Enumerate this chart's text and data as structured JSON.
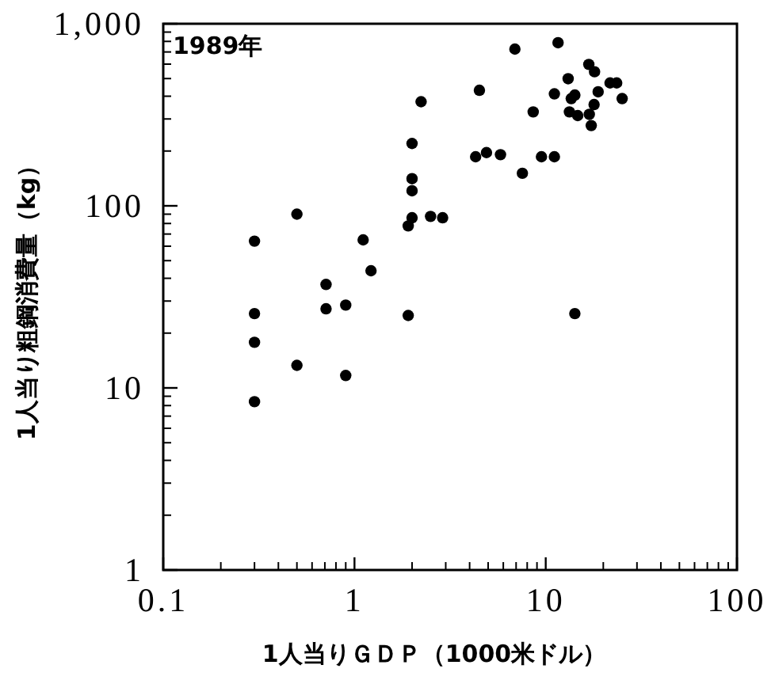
{
  "chart_data": {
    "type": "scatter",
    "xlabel": "1人当りＧＤＰ（1000米ドル）",
    "ylabel": "1人当り粗鋼消費量（kg）",
    "annotations": [
      "1989年"
    ],
    "log": "xy",
    "xlim": [
      0.1,
      100
    ],
    "ylim": [
      1,
      1000
    ],
    "xticks": [
      0.1,
      1,
      10,
      100
    ],
    "yticks": [
      1,
      10,
      100,
      {
        "value": 1000,
        "label": "1,000"
      }
    ],
    "marker": "circle",
    "grid": false,
    "series": [
      {
        "color": "#000000",
        "x": [
          0.3,
          0.3,
          0.3,
          0.3,
          0.5,
          0.5,
          0.71,
          0.71,
          0.9,
          0.9,
          1.11,
          1.22,
          1.91,
          1.91,
          2.0,
          2.0,
          2.0,
          2.0,
          2.23,
          2.5,
          2.89,
          4.3,
          4.5,
          4.9,
          5.8,
          6.9,
          7.55,
          8.6,
          9.5,
          11.1,
          11.1,
          11.6,
          13.1,
          13.3,
          13.6,
          14.2,
          14.2,
          14.7,
          16.8,
          16.9,
          17.3,
          17.9,
          18.0,
          18.8,
          21.7,
          23.5,
          25.1
        ],
        "values": [
          64,
          25.6,
          17.8,
          8.4,
          90,
          13.3,
          37,
          27.2,
          28.5,
          11.7,
          65,
          44,
          77.6,
          25,
          220,
          141,
          121,
          86,
          373,
          87.5,
          86,
          186,
          431,
          196,
          191,
          726,
          151,
          328,
          186,
          186,
          412,
          787,
          499,
          328,
          388,
          406,
          25.6,
          313,
          598,
          318,
          276,
          360,
          545,
          423,
          473,
          473,
          388
        ]
      }
    ]
  }
}
